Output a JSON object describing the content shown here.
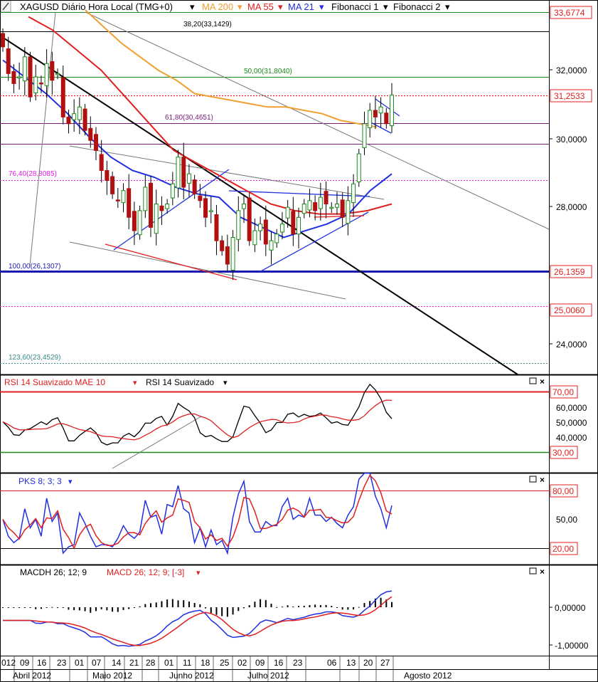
{
  "header": {
    "symbol": "XAGUSD Diário Hora Local (TMG+0)",
    "indicators": [
      {
        "label": "MA 200",
        "color": "#f0a030"
      },
      {
        "label": "MA 55",
        "color": "#e02020"
      },
      {
        "label": "MA 21",
        "color": "#2030e0"
      },
      {
        "label": "Fibonacci 1",
        "color": "#000000"
      },
      {
        "label": "Fibonacci 2",
        "color": "#000000"
      }
    ]
  },
  "price_axis": {
    "ticks": [
      "32,0000",
      "30,0000",
      "28,0000",
      "24,0000"
    ],
    "markers": [
      {
        "label": "33,6774",
        "color": "#e02020"
      },
      {
        "label": "31,2533",
        "color": "#e02020"
      },
      {
        "label": "26,1359",
        "color": "#e02020"
      },
      {
        "label": "25,0060",
        "color": "#e02020"
      }
    ]
  },
  "fib_levels": [
    {
      "label": "38,20(33,1429)",
      "value": 33.1429,
      "color": "#000000"
    },
    {
      "label": "50,00(31,8040)",
      "value": 31.804,
      "color": "#1a8a1a"
    },
    {
      "label": "61,80(30,4651)",
      "value": 30.4651,
      "color": "#7a1a7a"
    },
    {
      "label": "76,40(28,8085)",
      "value": 28.8085,
      "color": "#e020e0"
    },
    {
      "label": "100,00(26,1307)",
      "value": 26.1307,
      "color": "#1a1ab0"
    },
    {
      "label": "123,60(23,4529)",
      "value": 23.4529,
      "color": "#3a8a8a"
    }
  ],
  "rsi_panel": {
    "title1": "RSI 14 Suavizado MAE 10",
    "title2": "RSI 14 Suavizado",
    "ticks": [
      "60,0000",
      "50,0000",
      "40,0000"
    ],
    "markers": [
      "70,00",
      "30,00"
    ]
  },
  "pks_panel": {
    "title": "PKS 8; 3; 3",
    "ticks": [
      "50,00"
    ],
    "markers": [
      "80,00",
      "20,00"
    ]
  },
  "macd_panel": {
    "title1": "MACDH 26; 12; 9",
    "title2": "MACD 26; 12; 9; [-3]",
    "ticks": [
      "0,00000",
      "-1,00000"
    ]
  },
  "time_axis": {
    "days": [
      "012",
      "09",
      "16",
      "23",
      "01",
      "07",
      "14",
      "21",
      "28",
      "01",
      "11",
      "18",
      "25",
      "02",
      "09",
      "16",
      "23",
      "06",
      "13",
      "20",
      "27"
    ],
    "months": [
      "Abril 2012",
      "Maio 2012",
      "Junho 2012",
      "Julho 2012",
      "Agosto 2012"
    ]
  },
  "colors": {
    "up": "#1a8a1a",
    "down": "#b01010",
    "ma200": "#f0a030",
    "ma55": "#e02020",
    "ma21": "#2030e0"
  },
  "chart_data": {
    "type": "line",
    "title": "XAGUSD Diário Hora Local (TMG+0)",
    "ylim": [
      22.9,
      34.1
    ],
    "last_close": 31.2533,
    "series": [
      {
        "name": "XAGUSD",
        "values": [
          32.7,
          31.9,
          31.6,
          31.8,
          32.4,
          31.2,
          31.8,
          31.6,
          32.2,
          31.7,
          31.9,
          30.6,
          30.4,
          30.7,
          30.9,
          30.2,
          29.9,
          29.6,
          29.0,
          28.7,
          28.3,
          28.1,
          28.4,
          27.6,
          27.2,
          27.8,
          28.5,
          27.3,
          28.0,
          27.8,
          28.0,
          28.6,
          29.4,
          28.5,
          28.9,
          28.3,
          28.1,
          27.6,
          27.8,
          26.9,
          26.6,
          26.2,
          27.0,
          27.8,
          28.0,
          26.9,
          27.2,
          27.4,
          26.8,
          26.9,
          27.1,
          27.4,
          27.9,
          27.1,
          27.6,
          28.0,
          28.1,
          27.8,
          28.2,
          28.0,
          27.9,
          28.0,
          27.6,
          28.1,
          28.6,
          29.5,
          30.4,
          30.8,
          30.6,
          30.9,
          30.4,
          31.2533
        ]
      },
      {
        "name": "MA 200",
        "values": [
          33.8,
          33.3,
          32.8,
          32.4,
          32.0,
          31.7,
          31.3,
          31.2,
          31.1,
          31.0,
          30.9,
          30.9,
          30.8,
          30.7,
          30.5,
          30.4,
          30.3
        ]
      },
      {
        "name": "MA 55",
        "values": [
          33.6,
          33.2,
          32.6,
          32.0,
          31.2,
          30.4,
          29.6,
          29.2,
          28.8,
          28.4,
          28.0,
          27.8,
          27.7,
          27.7,
          27.8,
          28.0
        ]
      },
      {
        "name": "MA 21",
        "values": [
          32.3,
          31.8,
          31.3,
          30.7,
          30.0,
          29.4,
          29.0,
          28.8,
          28.5,
          28.3,
          28.2,
          27.6,
          27.3,
          27.0,
          27.2,
          27.4,
          27.7,
          28.4,
          28.9
        ]
      }
    ],
    "fib": [
      33.1429,
      31.804,
      30.4651,
      28.8085,
      26.1307,
      23.4529
    ]
  }
}
